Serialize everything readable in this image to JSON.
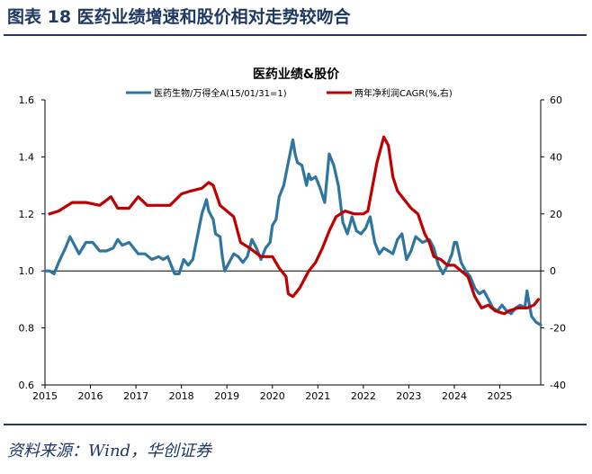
{
  "figure": {
    "title": "图表 18    医药业绩增速和股价相对走势较吻合",
    "source": "资料来源：Wind，华创证券"
  },
  "colors": {
    "title": "#1f3864",
    "price_series": "#2e75a0",
    "growth_series": "#c00000",
    "axis": "#000000"
  },
  "chart_data": {
    "type": "line",
    "title": "医药业绩&股价",
    "xlabel": "",
    "ylabel_left": "",
    "ylabel_right": "",
    "grid": false,
    "legend": "top-center",
    "x_ticks": [
      "2015",
      "2016",
      "2017",
      "2018",
      "2019",
      "2020",
      "2021",
      "2022",
      "2023",
      "2024",
      "2025"
    ],
    "x_range": [
      2015.0,
      2025.9
    ],
    "y_left": {
      "range": [
        0.6,
        1.6
      ],
      "ticks": [
        "0.6",
        "0.8",
        "1.0",
        "1.2",
        "1.4",
        "1.6"
      ]
    },
    "y_right": {
      "range": [
        -40,
        60
      ],
      "ticks": [
        "-40",
        "-20",
        "0",
        "20",
        "40",
        "60"
      ]
    },
    "series": [
      {
        "name": "医药生物/万得全A(15/01/31=1)",
        "axis": "left",
        "color": "#2e75a0",
        "points": [
          [
            2015.0,
            1.0
          ],
          [
            2015.1,
            1.0
          ],
          [
            2015.2,
            0.99
          ],
          [
            2015.3,
            1.03
          ],
          [
            2015.45,
            1.08
          ],
          [
            2015.55,
            1.12
          ],
          [
            2015.65,
            1.09
          ],
          [
            2015.75,
            1.06
          ],
          [
            2015.9,
            1.1
          ],
          [
            2016.05,
            1.1
          ],
          [
            2016.2,
            1.07
          ],
          [
            2016.35,
            1.07
          ],
          [
            2016.5,
            1.08
          ],
          [
            2016.6,
            1.11
          ],
          [
            2016.7,
            1.09
          ],
          [
            2016.85,
            1.1
          ],
          [
            2016.95,
            1.08
          ],
          [
            2017.05,
            1.06
          ],
          [
            2017.2,
            1.06
          ],
          [
            2017.35,
            1.04
          ],
          [
            2017.5,
            1.05
          ],
          [
            2017.6,
            1.04
          ],
          [
            2017.7,
            1.05
          ],
          [
            2017.8,
            1.01
          ],
          [
            2017.85,
            0.99
          ],
          [
            2017.95,
            0.99
          ],
          [
            2018.05,
            1.04
          ],
          [
            2018.15,
            1.02
          ],
          [
            2018.25,
            1.04
          ],
          [
            2018.35,
            1.12
          ],
          [
            2018.45,
            1.2
          ],
          [
            2018.55,
            1.25
          ],
          [
            2018.6,
            1.21
          ],
          [
            2018.7,
            1.18
          ],
          [
            2018.75,
            1.13
          ],
          [
            2018.85,
            1.12
          ],
          [
            2018.9,
            1.05
          ],
          [
            2018.95,
            1.0
          ],
          [
            2019.05,
            1.03
          ],
          [
            2019.15,
            1.06
          ],
          [
            2019.25,
            1.05
          ],
          [
            2019.35,
            1.03
          ],
          [
            2019.45,
            1.05
          ],
          [
            2019.55,
            1.11
          ],
          [
            2019.65,
            1.08
          ],
          [
            2019.75,
            1.04
          ],
          [
            2019.85,
            1.08
          ],
          [
            2019.95,
            1.1
          ],
          [
            2020.0,
            1.16
          ],
          [
            2020.08,
            1.18
          ],
          [
            2020.15,
            1.26
          ],
          [
            2020.25,
            1.3
          ],
          [
            2020.35,
            1.38
          ],
          [
            2020.45,
            1.46
          ],
          [
            2020.5,
            1.41
          ],
          [
            2020.55,
            1.38
          ],
          [
            2020.65,
            1.37
          ],
          [
            2020.75,
            1.3
          ],
          [
            2020.8,
            1.34
          ],
          [
            2020.85,
            1.32
          ],
          [
            2020.95,
            1.33
          ],
          [
            2021.05,
            1.29
          ],
          [
            2021.15,
            1.24
          ],
          [
            2021.25,
            1.41
          ],
          [
            2021.35,
            1.37
          ],
          [
            2021.45,
            1.3
          ],
          [
            2021.55,
            1.17
          ],
          [
            2021.65,
            1.13
          ],
          [
            2021.75,
            1.19
          ],
          [
            2021.85,
            1.14
          ],
          [
            2021.95,
            1.13
          ],
          [
            2022.05,
            1.15
          ],
          [
            2022.15,
            1.19
          ],
          [
            2022.25,
            1.1
          ],
          [
            2022.35,
            1.06
          ],
          [
            2022.45,
            1.08
          ],
          [
            2022.55,
            1.07
          ],
          [
            2022.65,
            1.06
          ],
          [
            2022.75,
            1.11
          ],
          [
            2022.85,
            1.13
          ],
          [
            2022.95,
            1.04
          ],
          [
            2023.05,
            1.07
          ],
          [
            2023.15,
            1.12
          ],
          [
            2023.3,
            1.1
          ],
          [
            2023.45,
            1.11
          ],
          [
            2023.55,
            1.08
          ],
          [
            2023.65,
            1.02
          ],
          [
            2023.75,
            0.99
          ],
          [
            2023.85,
            1.02
          ],
          [
            2023.95,
            1.06
          ],
          [
            2024.0,
            1.1
          ],
          [
            2024.05,
            1.1
          ],
          [
            2024.15,
            1.03
          ],
          [
            2024.25,
            1.0
          ],
          [
            2024.35,
            0.98
          ],
          [
            2024.45,
            0.94
          ],
          [
            2024.55,
            0.92
          ],
          [
            2024.65,
            0.93
          ],
          [
            2024.75,
            0.9
          ],
          [
            2024.85,
            0.87
          ],
          [
            2024.95,
            0.86
          ],
          [
            2025.05,
            0.88
          ],
          [
            2025.15,
            0.86
          ],
          [
            2025.25,
            0.85
          ],
          [
            2025.35,
            0.87
          ],
          [
            2025.45,
            0.88
          ],
          [
            2025.55,
            0.87
          ],
          [
            2025.6,
            0.93
          ],
          [
            2025.65,
            0.88
          ],
          [
            2025.7,
            0.84
          ],
          [
            2025.8,
            0.82
          ],
          [
            2025.9,
            0.81
          ]
        ]
      },
      {
        "name": "两年净利润CAGR(%,右)",
        "axis": "right",
        "color": "#c00000",
        "points": [
          [
            2015.1,
            20
          ],
          [
            2015.3,
            21
          ],
          [
            2015.6,
            24
          ],
          [
            2015.9,
            24
          ],
          [
            2016.2,
            23
          ],
          [
            2016.45,
            26
          ],
          [
            2016.6,
            22
          ],
          [
            2016.85,
            22
          ],
          [
            2017.05,
            26
          ],
          [
            2017.25,
            23
          ],
          [
            2017.5,
            23
          ],
          [
            2017.75,
            23
          ],
          [
            2018.0,
            27
          ],
          [
            2018.2,
            28
          ],
          [
            2018.45,
            29
          ],
          [
            2018.6,
            31
          ],
          [
            2018.7,
            30
          ],
          [
            2018.85,
            23
          ],
          [
            2019.15,
            19
          ],
          [
            2019.3,
            10
          ],
          [
            2019.5,
            8
          ],
          [
            2019.75,
            5
          ],
          [
            2020.0,
            5
          ],
          [
            2020.15,
            1
          ],
          [
            2020.3,
            -2
          ],
          [
            2020.35,
            -8
          ],
          [
            2020.45,
            -9
          ],
          [
            2020.6,
            -6
          ],
          [
            2020.8,
            0
          ],
          [
            2020.95,
            3
          ],
          [
            2021.1,
            8
          ],
          [
            2021.25,
            14
          ],
          [
            2021.4,
            19
          ],
          [
            2021.6,
            21
          ],
          [
            2021.8,
            20
          ],
          [
            2022.0,
            20
          ],
          [
            2022.1,
            21
          ],
          [
            2022.3,
            38
          ],
          [
            2022.45,
            47
          ],
          [
            2022.55,
            44
          ],
          [
            2022.65,
            33
          ],
          [
            2022.75,
            28
          ],
          [
            2022.9,
            25
          ],
          [
            2023.05,
            22
          ],
          [
            2023.2,
            20
          ],
          [
            2023.35,
            13
          ],
          [
            2023.45,
            10
          ],
          [
            2023.55,
            5
          ],
          [
            2023.7,
            4
          ],
          [
            2023.85,
            2
          ],
          [
            2024.0,
            2
          ],
          [
            2024.15,
            0
          ],
          [
            2024.3,
            -2
          ],
          [
            2024.45,
            -9
          ],
          [
            2024.6,
            -13
          ],
          [
            2024.75,
            -12
          ],
          [
            2024.9,
            -14
          ],
          [
            2025.1,
            -15
          ],
          [
            2025.2,
            -14
          ],
          [
            2025.4,
            -13
          ],
          [
            2025.6,
            -13
          ],
          [
            2025.75,
            -12
          ],
          [
            2025.85,
            -10
          ]
        ]
      }
    ]
  }
}
